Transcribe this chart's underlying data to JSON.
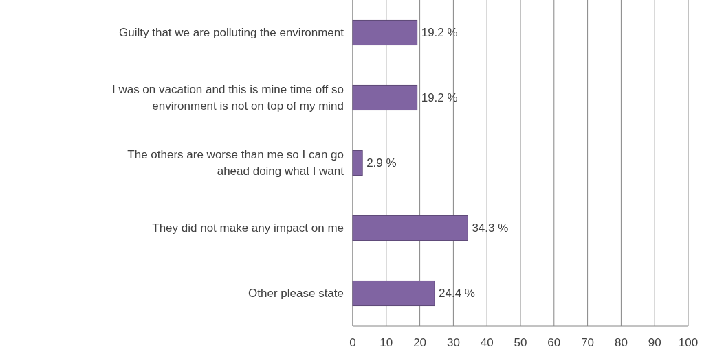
{
  "chart_data": {
    "type": "bar",
    "orientation": "horizontal",
    "categories": [
      "Guilty that we are polluting the environment",
      "I was on vacation and this is mine time off so\nenvironment is not on top of my mind",
      "The others are worse than me so I can go\nahead doing what I want",
      "They did not make any impact on me",
      "Other please state"
    ],
    "values": [
      19.2,
      19.2,
      2.9,
      34.3,
      24.4
    ],
    "value_labels": [
      "19.2 %",
      "19.2 %",
      "2.9 %",
      "34.3 %",
      "24.4 %"
    ],
    "color": "#8064a2",
    "xlim": [
      0,
      100
    ],
    "xticks": [
      0,
      10,
      20,
      30,
      40,
      50,
      60,
      70,
      80,
      90,
      100
    ],
    "grid": "x"
  }
}
